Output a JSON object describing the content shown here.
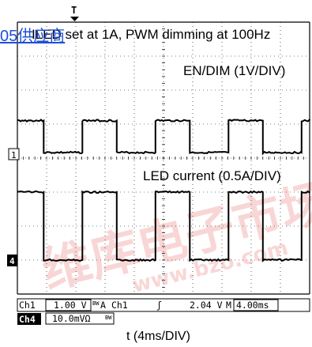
{
  "overlay_link": "05供应商",
  "chart_data": {
    "type": "line",
    "title": "ILED set at 1A, PWM dimming at 100Hz",
    "xlabel": "t (4ms/DIV)",
    "x_unit": "ms",
    "x_range": [
      0,
      40
    ],
    "series": [
      {
        "name": "EN/DIM (1V/DIV)",
        "ground_marker": "1",
        "transitions_ms": [
          3.6,
          8.9,
          13.6,
          18.9,
          23.6,
          28.9,
          33.6,
          38.9
        ],
        "high_level_div": 0.94,
        "low_level_div": 0,
        "starts_high": true
      },
      {
        "name": "LED current (0.5A/DIV)",
        "ground_marker": "4",
        "transitions_ms": [
          3.6,
          8.9,
          13.6,
          18.9,
          23.6,
          28.9,
          33.6,
          38.9
        ],
        "high_level_div": 2.0,
        "low_level_div": 0,
        "starts_high": true
      }
    ],
    "grid": true,
    "trigger_marker": "T",
    "status_bar": {
      "row1_left": "Ch1",
      "row1_scale": "1.00 V",
      "row1_bw": "BW",
      "row1_bw2": "A",
      "row1_trig_src": "Ch1",
      "row1_trig_slope": "ʃ",
      "row1_trig_level": "2.04 V",
      "row1_m": "M",
      "row1_timebase": "4.00ms",
      "row2_left": "Ch4",
      "row2_scale": "10.0mVΩ",
      "row2_bw": "BW"
    },
    "watermark": "www.bzo.com"
  }
}
